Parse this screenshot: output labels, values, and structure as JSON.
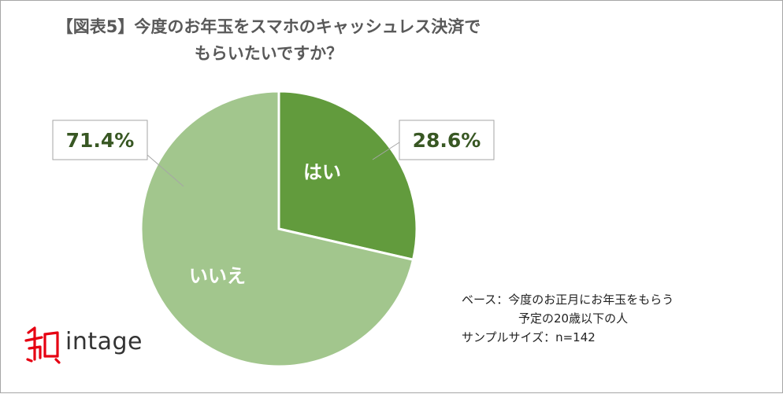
{
  "title": {
    "line1": "【図表5】今度のお年玉をスマホのキャッシュレス決済で",
    "line2": "もらいたいですか？"
  },
  "chart_data": {
    "type": "pie",
    "categories": [
      "はい",
      "いいえ"
    ],
    "values": [
      28.6,
      71.4
    ],
    "value_labels": [
      "28.6%",
      "71.4%"
    ],
    "colors": [
      "#629b3d",
      "#a2c68d"
    ],
    "label_color": "#385723",
    "start": "12 o'clock, clockwise"
  },
  "note": {
    "base_line1": "ベース：今度のお正月にお年玉をもらう",
    "base_line2": "予定の20歳以下の人",
    "sample": "サンプルサイズ：n=142"
  },
  "logo": {
    "text": "intage",
    "color": "#e60012"
  }
}
